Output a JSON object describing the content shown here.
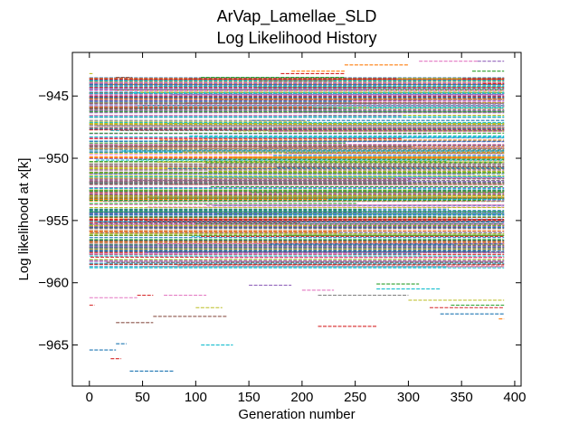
{
  "chart_data": {
    "type": "line",
    "title": "ArVap_Lamellae_SLD",
    "subtitle": "Log Likelihood History",
    "xlabel": "Generation number",
    "ylabel": "Log likelihood at x[k]",
    "xlim": [
      -16,
      406
    ],
    "ylim": [
      -968.3,
      -941.5
    ],
    "xticks": [
      0,
      50,
      100,
      150,
      200,
      250,
      300,
      350,
      400
    ],
    "yticks": [
      -945,
      -950,
      -955,
      -960,
      -965
    ],
    "grid": false,
    "legend": "none",
    "tick_direction": "in",
    "generations": [
      0,
      390
    ],
    "dense_band": [
      -959.0,
      -943.5
    ],
    "palette": [
      "#1f77b4",
      "#ff7f0e",
      "#2ca02c",
      "#d62728",
      "#9467bd",
      "#8c564b",
      "#e377c2",
      "#7f7f7f",
      "#bcbd22",
      "#17becf"
    ],
    "sparse_segments": [
      {
        "x": [
          0,
          25
        ],
        "y": -965.4,
        "color": "#1f77b4"
      },
      {
        "x": [
          20,
          30
        ],
        "y": -966.1,
        "color": "#d62728"
      },
      {
        "x": [
          38,
          80
        ],
        "y": -967.1,
        "color": "#1f77b4"
      },
      {
        "x": [
          105,
          135
        ],
        "y": -965.0,
        "color": "#17becf"
      },
      {
        "x": [
          25,
          35
        ],
        "y": -964.9,
        "color": "#1f77b4"
      },
      {
        "x": [
          25,
          60
        ],
        "y": -963.2,
        "color": "#8c564b"
      },
      {
        "x": [
          60,
          130
        ],
        "y": -962.7,
        "color": "#8c564b"
      },
      {
        "x": [
          100,
          125
        ],
        "y": -962.0,
        "color": "#bcbd22"
      },
      {
        "x": [
          0,
          45
        ],
        "y": -961.2,
        "color": "#e377c2"
      },
      {
        "x": [
          45,
          60
        ],
        "y": -961.0,
        "color": "#d62728"
      },
      {
        "x": [
          70,
          110
        ],
        "y": -961.0,
        "color": "#e377c2"
      },
      {
        "x": [
          215,
          300
        ],
        "y": -961.0,
        "color": "#7f7f7f"
      },
      {
        "x": [
          200,
          230
        ],
        "y": -960.6,
        "color": "#e377c2"
      },
      {
        "x": [
          270,
          330
        ],
        "y": -960.5,
        "color": "#17becf"
      },
      {
        "x": [
          300,
          390
        ],
        "y": -961.4,
        "color": "#bcbd22"
      },
      {
        "x": [
          320,
          390
        ],
        "y": -962.0,
        "color": "#d62728"
      },
      {
        "x": [
          330,
          390
        ],
        "y": -962.5,
        "color": "#1f77b4"
      },
      {
        "x": [
          215,
          270
        ],
        "y": -963.5,
        "color": "#d62728"
      },
      {
        "x": [
          0,
          5
        ],
        "y": -961.8,
        "color": "#d62728"
      },
      {
        "x": [
          385,
          390
        ],
        "y": -962.9,
        "color": "#ff7f0e"
      },
      {
        "x": [
          270,
          310
        ],
        "y": -960.1,
        "color": "#2ca02c"
      },
      {
        "x": [
          150,
          190
        ],
        "y": -960.2,
        "color": "#9467bd"
      },
      {
        "x": [
          340,
          390
        ],
        "y": -961.8,
        "color": "#2ca02c"
      },
      {
        "x": [
          0,
          3
        ],
        "y": -943.2,
        "color": "#bcbd22"
      },
      {
        "x": [
          25,
          40
        ],
        "y": -943.5,
        "color": "#8c564b"
      },
      {
        "x": [
          105,
          240
        ],
        "y": -943.5,
        "color": "#2ca02c"
      },
      {
        "x": [
          180,
          240
        ],
        "y": -943.2,
        "color": "#d62728"
      },
      {
        "x": [
          190,
          240
        ],
        "y": -943.0,
        "color": "#ff7f0e"
      },
      {
        "x": [
          240,
          300
        ],
        "y": -942.5,
        "color": "#ff7f0e"
      },
      {
        "x": [
          310,
          365
        ],
        "y": -942.2,
        "color": "#e377c2"
      },
      {
        "x": [
          365,
          390
        ],
        "y": -942.2,
        "color": "#9467bd"
      },
      {
        "x": [
          360,
          390
        ],
        "y": -943.0,
        "color": "#2ca02c"
      },
      {
        "x": [
          370,
          390
        ],
        "y": -944.0,
        "color": "#d62728"
      },
      {
        "x": [
          160,
          230
        ],
        "y": -943.8,
        "color": "#7f7f7f"
      },
      {
        "x": [
          290,
          350
        ],
        "y": -943.6,
        "color": "#bcbd22"
      }
    ]
  }
}
